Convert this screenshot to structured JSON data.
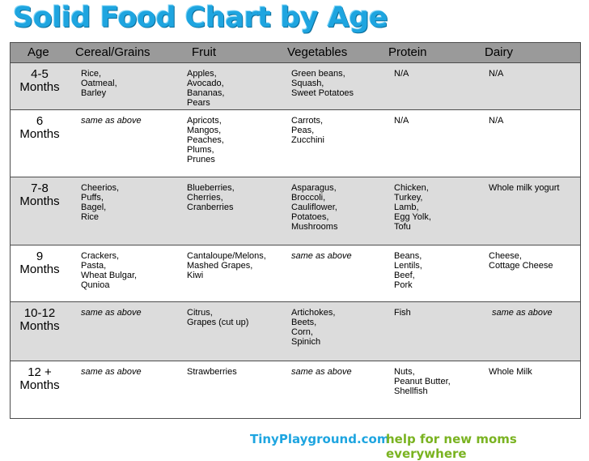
{
  "title": "Solid Food Chart by Age",
  "headers": [
    "Age",
    "Cereal/Grains",
    "Fruit",
    "Vegetables",
    "Protein",
    "Dairy"
  ],
  "rows": [
    {
      "age": "4-5\nMonths",
      "cereal": "Rice,\nOatmeal,\nBarley",
      "fruit": "Apples,\nAvocado,\nBananas,\nPears",
      "veg": "Green beans,\nSquash,\nSweet Potatoes",
      "protein": "N/A",
      "dairy": "N/A"
    },
    {
      "age": "6\nMonths",
      "cereal": "same as above",
      "fruit": "Apricots,\nMangos,\nPeaches,\nPlums,\nPrunes",
      "veg": "Carrots,\nPeas,\nZucchini",
      "protein": "N/A",
      "dairy": "N/A"
    },
    {
      "age": "7-8\nMonths",
      "cereal": "Cheerios,\nPuffs,\nBagel,\nRice",
      "fruit": "Blueberries,\nCherries,\nCranberries",
      "veg": "Asparagus,\nBroccoli,\nCauliflower,\nPotatoes,\nMushrooms",
      "protein": "Chicken,\nTurkey,\nLamb,\nEgg Yolk,\nTofu",
      "dairy": "Whole milk yogurt"
    },
    {
      "age": "9\nMonths",
      "cereal": "Crackers,\nPasta,\nWheat Bulgar,\nQunioa",
      "fruit": "Cantaloupe/Melons,\nMashed Grapes,\nKiwi",
      "veg": "same as above",
      "protein": "Beans,\nLentils,\nBeef,\nPork",
      "dairy": "Cheese,\nCottage Cheese"
    },
    {
      "age": "10-12\nMonths",
      "cereal": "same as above",
      "fruit": "Citrus,\nGrapes (cut up)",
      "veg": "Artichokes,\nBeets,\nCorn,\nSpinich",
      "protein": "Fish",
      "dairy": "same as above"
    },
    {
      "age": "12 +\nMonths",
      "cereal": "same as above",
      "fruit": "Strawberries",
      "veg": "same as above",
      "protein": "Nuts,\nPeanut Butter,\nShellfish",
      "dairy": "Whole Milk"
    }
  ],
  "footer": {
    "site": "TinyPlayground.com",
    "tagline": "help for new moms everywhere"
  }
}
